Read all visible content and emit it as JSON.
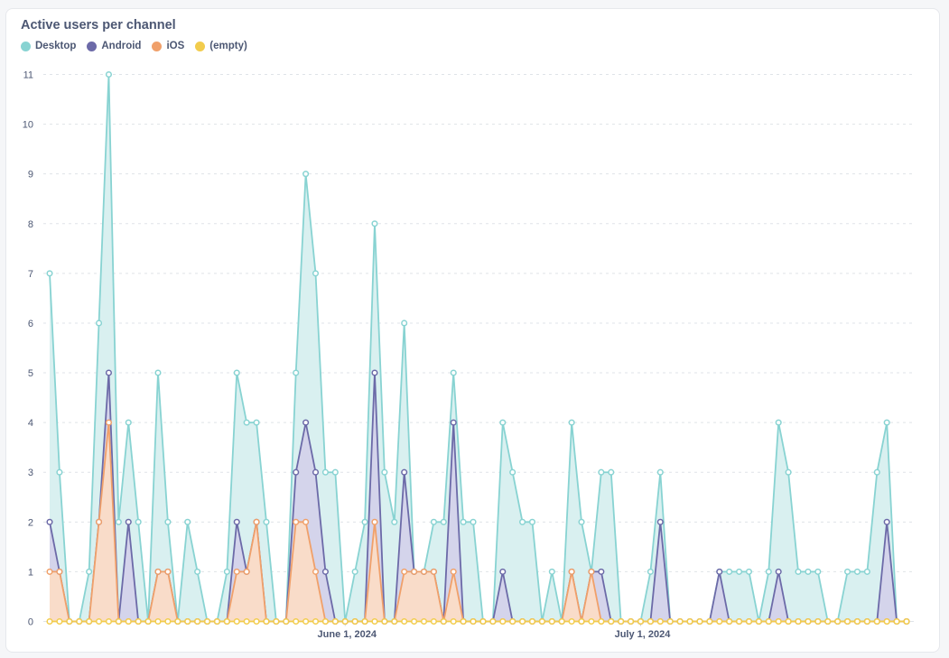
{
  "chart_data": {
    "type": "area",
    "title": "Active users per channel",
    "x_tick_labels": [
      "June 1, 2024",
      "July 1, 2024"
    ],
    "y_ticks": [
      0,
      1,
      2,
      3,
      4,
      5,
      6,
      7,
      8,
      9,
      10,
      11
    ],
    "ylim": [
      0,
      11
    ],
    "grid": true,
    "legend_position": "top-left",
    "series": [
      {
        "name": "Desktop",
        "color": "#88d3d2",
        "values": [
          7,
          3,
          0,
          0,
          1,
          6,
          11,
          2,
          4,
          2,
          0,
          5,
          2,
          0,
          2,
          1,
          0,
          0,
          1,
          5,
          4,
          4,
          2,
          0,
          0,
          5,
          9,
          7,
          3,
          3,
          0,
          1,
          2,
          8,
          3,
          2,
          6,
          1,
          1,
          2,
          2,
          5,
          2,
          2,
          0,
          0,
          4,
          3,
          2,
          2,
          0,
          1,
          0,
          4,
          2,
          1,
          3,
          3,
          0,
          0,
          0,
          1,
          3,
          0,
          0,
          0,
          0,
          0,
          1,
          1,
          1,
          1,
          0,
          1,
          4,
          3,
          1,
          1,
          1,
          0,
          0,
          1,
          1,
          1,
          3,
          4,
          0,
          0
        ]
      },
      {
        "name": "Android",
        "color": "#6c6aa8",
        "values": [
          2,
          1,
          0,
          0,
          0,
          2,
          5,
          0,
          2,
          0,
          0,
          1,
          1,
          0,
          0,
          0,
          0,
          0,
          0,
          2,
          1,
          2,
          0,
          0,
          0,
          3,
          4,
          3,
          1,
          0,
          0,
          0,
          0,
          5,
          0,
          0,
          3,
          1,
          1,
          1,
          0,
          4,
          0,
          0,
          0,
          0,
          1,
          0,
          0,
          0,
          0,
          0,
          0,
          1,
          0,
          1,
          1,
          0,
          0,
          0,
          0,
          0,
          2,
          0,
          0,
          0,
          0,
          0,
          1,
          0,
          0,
          0,
          0,
          0,
          1,
          0,
          0,
          0,
          0,
          0,
          0,
          0,
          0,
          0,
          0,
          2,
          0,
          0
        ]
      },
      {
        "name": "iOS",
        "color": "#f0a06a",
        "values": [
          1,
          1,
          0,
          0,
          0,
          2,
          4,
          0,
          0,
          0,
          0,
          1,
          1,
          0,
          0,
          0,
          0,
          0,
          0,
          1,
          1,
          2,
          0,
          0,
          0,
          2,
          2,
          1,
          0,
          0,
          0,
          0,
          0,
          2,
          0,
          0,
          1,
          1,
          1,
          1,
          0,
          1,
          0,
          0,
          0,
          0,
          0,
          0,
          0,
          0,
          0,
          0,
          0,
          1,
          0,
          1,
          0,
          0,
          0,
          0,
          0,
          0,
          0,
          0,
          0,
          0,
          0,
          0,
          0,
          0,
          0,
          0,
          0,
          0,
          0,
          0,
          0,
          0,
          0,
          0,
          0,
          0,
          0,
          0,
          0,
          0,
          0,
          0
        ]
      },
      {
        "name": "(empty)",
        "color": "#f2cc4d",
        "values": [
          0,
          0,
          0,
          0,
          0,
          0,
          0,
          0,
          0,
          0,
          0,
          0,
          0,
          0,
          0,
          0,
          0,
          0,
          0,
          0,
          0,
          0,
          0,
          0,
          0,
          0,
          0,
          0,
          0,
          0,
          0,
          0,
          0,
          0,
          0,
          0,
          0,
          0,
          0,
          0,
          0,
          0,
          0,
          0,
          0,
          0,
          0,
          0,
          0,
          0,
          0,
          0,
          0,
          0,
          0,
          0,
          0,
          0,
          0,
          0,
          0,
          0,
          0,
          0,
          0,
          0,
          0,
          0,
          0,
          0,
          0,
          0,
          0,
          0,
          0,
          0,
          0,
          0,
          0,
          0,
          0,
          0,
          0,
          0,
          0,
          0,
          0,
          0
        ]
      }
    ]
  }
}
